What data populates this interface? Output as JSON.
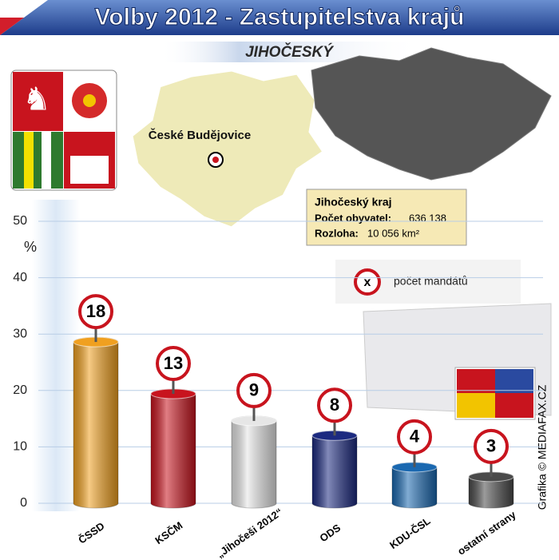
{
  "chart_data": {
    "type": "bar",
    "title": "Volby 2012 - Zastupitelstva krajů",
    "subtitle": "JIHOČESKÝ",
    "map_label": "České Budějovice",
    "ylabel": "%",
    "categories": [
      "ČSSD",
      "KSČM",
      "„Jihočeši 2012“",
      "ODS",
      "KDU-ČSL",
      "ostatní strany"
    ],
    "values": [
      28.6,
      19.4,
      14.6,
      12,
      6.4,
      4.7
    ],
    "colors": [
      "#f0a020",
      "#c8141e",
      "#e6e6e6",
      "#1c2a80",
      "#1a68b0",
      "#4a4a4a"
    ],
    "mandates": [
      18,
      13,
      9,
      8,
      4,
      3
    ],
    "ylim": [
      0,
      50
    ],
    "yticks": [
      0,
      10,
      20,
      30,
      40,
      50
    ],
    "grid": true,
    "info": {
      "title": "Jihočeský kraj",
      "rows": [
        {
          "label": "Počet obyvatel:",
          "value": "636 138"
        },
        {
          "label": "Rozloha:",
          "value": "10 056 km²"
        }
      ]
    },
    "legend_symbol": "x",
    "legend_label": "počet mandátů",
    "credit": "Grafika © MEDIAFAX.CZ"
  }
}
